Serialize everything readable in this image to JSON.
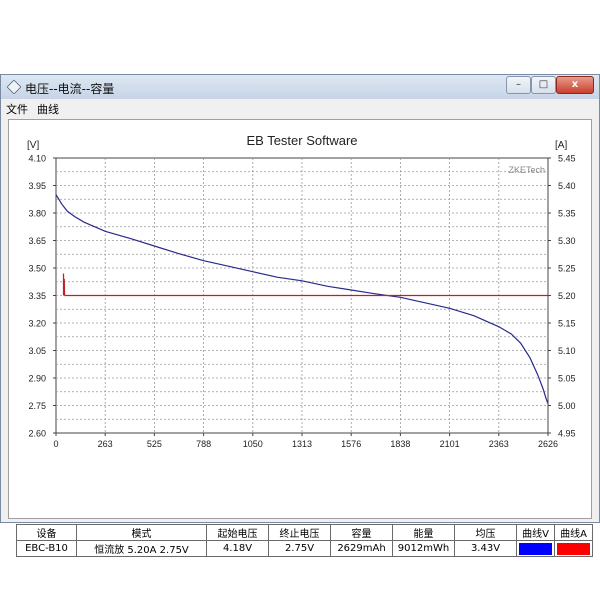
{
  "window": {
    "title": "电压--电流--容量",
    "controls": {
      "minimize": "–",
      "maximize": "□",
      "close": "x"
    }
  },
  "menu": [
    {
      "label": "文件"
    },
    {
      "label": "曲线"
    }
  ],
  "chart_data": {
    "type": "line",
    "title": "EB Tester Software",
    "watermark": "ZKETech",
    "left_axis": {
      "unit": "[V]",
      "range": [
        2.6,
        4.1
      ],
      "ticks": [
        "4.10",
        "3.95",
        "3.80",
        "3.65",
        "3.50",
        "3.35",
        "3.20",
        "3.05",
        "2.90",
        "2.75",
        "2.60"
      ]
    },
    "right_axis": {
      "unit": "[A]",
      "range": [
        4.95,
        5.45
      ],
      "ticks": [
        "5.45",
        "5.40",
        "5.35",
        "5.30",
        "5.25",
        "5.20",
        "5.15",
        "5.10",
        "5.05",
        "5.00",
        "4.95"
      ]
    },
    "x_axis": {
      "range": [
        0,
        2626
      ],
      "ticks": [
        "0",
        "263",
        "525",
        "788",
        "1050",
        "1313",
        "1576",
        "1838",
        "2101",
        "2363",
        "2626"
      ]
    },
    "grid": true,
    "series": [
      {
        "axis": "left",
        "color": "#2a2a8c",
        "points": [
          [
            0,
            3.9
          ],
          [
            30,
            3.85
          ],
          [
            60,
            3.81
          ],
          [
            100,
            3.78
          ],
          [
            150,
            3.75
          ],
          [
            263,
            3.7
          ],
          [
            400,
            3.66
          ],
          [
            525,
            3.62
          ],
          [
            650,
            3.58
          ],
          [
            788,
            3.54
          ],
          [
            920,
            3.51
          ],
          [
            1050,
            3.48
          ],
          [
            1180,
            3.45
          ],
          [
            1313,
            3.43
          ],
          [
            1450,
            3.4
          ],
          [
            1576,
            3.38
          ],
          [
            1700,
            3.36
          ],
          [
            1838,
            3.34
          ],
          [
            1970,
            3.31
          ],
          [
            2101,
            3.28
          ],
          [
            2230,
            3.24
          ],
          [
            2363,
            3.18
          ],
          [
            2430,
            3.14
          ],
          [
            2480,
            3.09
          ],
          [
            2530,
            3.01
          ],
          [
            2570,
            2.92
          ],
          [
            2600,
            2.84
          ],
          [
            2615,
            2.79
          ],
          [
            2626,
            2.76
          ]
        ]
      },
      {
        "axis": "right",
        "color": "#c02020",
        "spike": [
          [
            40,
            5.2
          ],
          [
            40,
            5.24
          ],
          [
            42,
            5.21
          ],
          [
            44,
            5.23
          ],
          [
            46,
            5.2
          ]
        ],
        "points": [
          [
            46,
            5.2
          ],
          [
            2626,
            5.2
          ]
        ]
      }
    ]
  },
  "table": {
    "headers": [
      "设备",
      "模式",
      "起始电压",
      "终止电压",
      "容量",
      "能量",
      "均压",
      "曲线V",
      "曲线A"
    ],
    "values": [
      "EBC-B10",
      "恒流放  5.20A  2.75V",
      "4.18V",
      "2.75V",
      "2629mAh",
      "9012mWh",
      "3.43V",
      "",
      ""
    ],
    "swatch_colors": {
      "curve_v": "#0000ff",
      "curve_a": "#ff0000"
    }
  }
}
